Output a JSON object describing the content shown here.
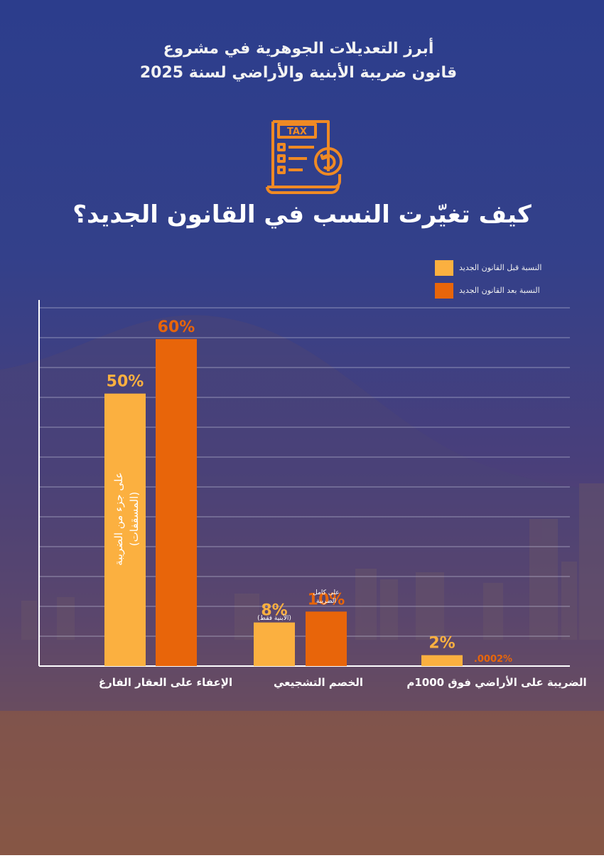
{
  "title": {
    "line1": "أبرز التعديلات الجوهرية في مشروع",
    "line2": "قانون ضريبة الأبنية والأراضي لسنة 2025"
  },
  "icon": {
    "name": "tax-document-icon",
    "text": "TAX"
  },
  "subtitle": "كيف تغيّرت النسب في القانون الجديد؟",
  "colors": {
    "before": "#fbb040",
    "after": "#e8650a",
    "grid": "#cfd3e6"
  },
  "legend": [
    {
      "label": "النسبة قبل القانون الجديد",
      "color": "#fbb040"
    },
    {
      "label": "النسبة بعد القانون الجديد",
      "color": "#e8650a"
    }
  ],
  "chart_data": {
    "type": "bar",
    "categories": [
      "الإعفاء على العقار الفارغ",
      "الخصم التشجيعي",
      "الضريبة على الأراضي فوق 1000م"
    ],
    "ylim": [
      0,
      60
    ],
    "grid": true,
    "legend_position": "top-right",
    "series": [
      {
        "name": "النسبة قبل القانون الجديد",
        "values": [
          50,
          8,
          2
        ],
        "labels": [
          "50%",
          "8%",
          "2%"
        ]
      },
      {
        "name": "النسبة بعد القانون الجديد",
        "values": [
          60,
          10,
          0.0002
        ],
        "labels": [
          "60%",
          "10%",
          ".0002%"
        ]
      }
    ],
    "annotations": {
      "bar_inner_line1": "على جزء من الضريبة",
      "bar_inner_line2": "(المسقفات)",
      "discount_before_note": "(الأبنية فقط)",
      "discount_after_note_line1": "على كامل",
      "discount_after_note_line2": "الضريبة"
    }
  }
}
